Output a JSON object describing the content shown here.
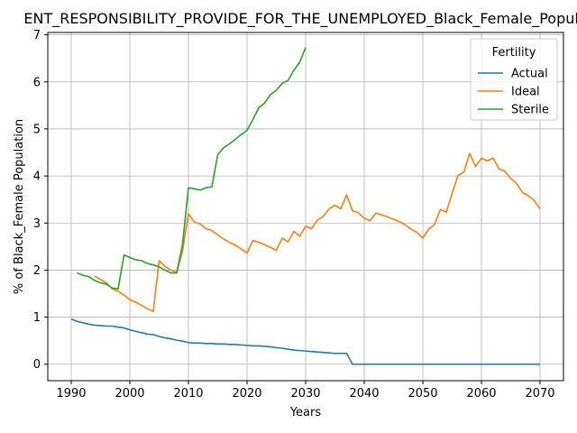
{
  "chart_data": {
    "type": "line",
    "title": "ENT_RESPONSIBILITY_PROVIDE_FOR_THE_UNEMPLOYED_Black_Female_Popula",
    "xlabel": "Years",
    "ylabel": "% of Black_Female Population",
    "xlim": [
      1986,
      2074
    ],
    "ylim": [
      -0.35,
      7.05
    ],
    "xticks": [
      1990,
      2000,
      2010,
      2020,
      2030,
      2040,
      2050,
      2060,
      2070
    ],
    "yticks": [
      0,
      1,
      2,
      3,
      4,
      5,
      6,
      7
    ],
    "grid": true,
    "legend": {
      "title": "Fertility",
      "placement": "top-right"
    },
    "series": [
      {
        "name": "Actual",
        "color": "#1f77b4",
        "x": [
          1990,
          1991,
          1992,
          1993,
          1994,
          1995,
          1996,
          1997,
          1998,
          1999,
          2000,
          2001,
          2002,
          2003,
          2004,
          2005,
          2006,
          2007,
          2008,
          2009,
          2010,
          2011,
          2012,
          2013,
          2014,
          2015,
          2016,
          2017,
          2018,
          2019,
          2020,
          2021,
          2022,
          2023,
          2024,
          2025,
          2026,
          2027,
          2028,
          2029,
          2030,
          2031,
          2032,
          2033,
          2034,
          2035,
          2036,
          2037,
          2038,
          2039,
          2040,
          2041,
          2042,
          2043,
          2044,
          2045,
          2046,
          2047,
          2048,
          2049,
          2050,
          2051,
          2052,
          2053,
          2054,
          2055,
          2056,
          2057,
          2058,
          2059,
          2060,
          2061,
          2062,
          2063,
          2064,
          2065,
          2066,
          2067,
          2068,
          2069,
          2070
        ],
        "y": [
          0.96,
          0.91,
          0.88,
          0.85,
          0.83,
          0.82,
          0.81,
          0.81,
          0.79,
          0.77,
          0.73,
          0.7,
          0.67,
          0.64,
          0.63,
          0.59,
          0.56,
          0.54,
          0.51,
          0.49,
          0.46,
          0.45,
          0.45,
          0.44,
          0.44,
          0.43,
          0.43,
          0.42,
          0.42,
          0.41,
          0.4,
          0.39,
          0.39,
          0.38,
          0.37,
          0.35,
          0.34,
          0.32,
          0.3,
          0.29,
          0.28,
          0.27,
          0.26,
          0.25,
          0.24,
          0.23,
          0.23,
          0.23,
          0.0,
          0.0,
          0.0,
          0.0,
          0.0,
          0.0,
          0.0,
          0.0,
          0.0,
          0.0,
          0.0,
          0.0,
          0.0,
          0.0,
          0.0,
          0.0,
          0.0,
          0.0,
          0.0,
          0.0,
          0.0,
          0.0,
          0.0,
          0.0,
          0.0,
          0.0,
          0.0,
          0.0,
          0.0,
          0.0,
          0.0,
          0.0,
          0.0
        ]
      },
      {
        "name": "Ideal",
        "color": "#ff7f0e",
        "x": [
          1994,
          1995,
          1996,
          1997,
          1998,
          1999,
          2000,
          2001,
          2002,
          2003,
          2004,
          2005,
          2006,
          2007,
          2008,
          2009,
          2010,
          2011,
          2012,
          2013,
          2014,
          2015,
          2016,
          2017,
          2018,
          2019,
          2020,
          2021,
          2022,
          2023,
          2024,
          2025,
          2026,
          2027,
          2028,
          2029,
          2030,
          2031,
          2032,
          2033,
          2034,
          2035,
          2036,
          2037,
          2038,
          2039,
          2040,
          2041,
          2042,
          2043,
          2044,
          2045,
          2046,
          2047,
          2048,
          2049,
          2050,
          2051,
          2052,
          2053,
          2054,
          2055,
          2056,
          2057,
          2058,
          2059,
          2060,
          2061,
          2062,
          2063,
          2064,
          2065,
          2066,
          2067,
          2068,
          2069,
          2070
        ],
        "y": [
          1.87,
          1.8,
          1.73,
          1.6,
          1.55,
          1.47,
          1.37,
          1.32,
          1.25,
          1.18,
          1.12,
          2.2,
          2.08,
          2.0,
          1.95,
          2.4,
          3.2,
          3.02,
          2.98,
          2.88,
          2.84,
          2.75,
          2.66,
          2.59,
          2.53,
          2.45,
          2.36,
          2.63,
          2.59,
          2.54,
          2.48,
          2.42,
          2.68,
          2.6,
          2.82,
          2.72,
          2.93,
          2.88,
          3.06,
          3.14,
          3.3,
          3.38,
          3.3,
          3.6,
          3.26,
          3.22,
          3.1,
          3.05,
          3.21,
          3.17,
          3.13,
          3.08,
          3.03,
          2.96,
          2.87,
          2.8,
          2.68,
          2.87,
          2.97,
          3.29,
          3.23,
          3.63,
          4.01,
          4.08,
          4.48,
          4.2,
          4.38,
          4.32,
          4.38,
          4.15,
          4.1,
          3.95,
          3.84,
          3.65,
          3.58,
          3.48,
          3.3
        ]
      },
      {
        "name": "Sterile",
        "color": "#2ca02c",
        "x": [
          1991,
          1992,
          1993,
          1994,
          1995,
          1996,
          1997,
          1998,
          1999,
          2000,
          2001,
          2002,
          2003,
          2004,
          2005,
          2006,
          2007,
          2008,
          2009,
          2010,
          2011,
          2012,
          2013,
          2014,
          2015,
          2016,
          2017,
          2018,
          2019,
          2020,
          2021,
          2022,
          2023,
          2024,
          2025,
          2026,
          2027,
          2028,
          2029,
          2030
        ],
        "y": [
          1.94,
          1.89,
          1.86,
          1.78,
          1.73,
          1.7,
          1.62,
          1.6,
          2.32,
          2.27,
          2.22,
          2.2,
          2.14,
          2.11,
          2.07,
          2.0,
          1.94,
          1.94,
          2.55,
          3.75,
          3.73,
          3.7,
          3.75,
          3.77,
          4.45,
          4.6,
          4.68,
          4.78,
          4.88,
          4.97,
          5.2,
          5.45,
          5.55,
          5.73,
          5.82,
          5.97,
          6.03,
          6.25,
          6.42,
          6.73
        ]
      }
    ]
  }
}
